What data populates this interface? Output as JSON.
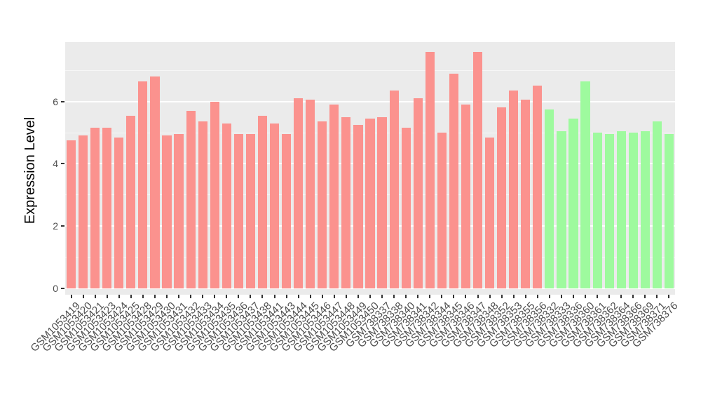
{
  "chart_data": {
    "type": "bar",
    "title": "",
    "xlabel": "",
    "ylabel": "Expression Level",
    "ylim": [
      0,
      7.9
    ],
    "yticks_major": [
      0,
      2,
      4,
      6
    ],
    "yticks_minor": [
      1,
      3,
      5,
      7
    ],
    "grid": "on",
    "legend": "none",
    "panel_background": "#EBEBEB",
    "categories": [
      "GSM1053419",
      "GSM1053420",
      "GSM1053421",
      "GSM1053423",
      "GSM1053424",
      "GSM1053425",
      "GSM1053428",
      "GSM1053429",
      "GSM1053430",
      "GSM1053431",
      "GSM1053432",
      "GSM1053433",
      "GSM1053434",
      "GSM1053435",
      "GSM1053436",
      "GSM1053437",
      "GSM1053438",
      "GSM1053441",
      "GSM1053443",
      "GSM1053444",
      "GSM1053445",
      "GSM1053446",
      "GSM1053447",
      "GSM1053448",
      "GSM1053449",
      "GSM1053450",
      "GSM738337",
      "GSM738338",
      "GSM738340",
      "GSM738341",
      "GSM738342",
      "GSM738344",
      "GSM738345",
      "GSM738346",
      "GSM738347",
      "GSM738348",
      "GSM738352",
      "GSM738353",
      "GSM738355",
      "GSM738356",
      "GSM738332",
      "GSM738333",
      "GSM738336",
      "GSM738360",
      "GSM738361",
      "GSM738362",
      "GSM738364",
      "GSM738366",
      "GSM738369",
      "GSM738371",
      "GSM738376"
    ],
    "values": [
      4.75,
      4.9,
      5.15,
      5.15,
      4.85,
      5.55,
      6.65,
      6.8,
      4.9,
      4.95,
      5.7,
      5.35,
      6.0,
      5.3,
      4.95,
      4.95,
      5.55,
      5.3,
      4.95,
      6.1,
      6.05,
      5.35,
      5.9,
      5.5,
      5.25,
      5.45,
      5.5,
      6.35,
      5.15,
      6.1,
      7.6,
      5.0,
      6.9,
      5.9,
      7.6,
      4.85,
      5.8,
      6.35,
      6.05,
      6.5,
      5.75,
      5.05,
      5.45,
      6.65,
      5.0,
      4.95,
      5.05,
      5.0,
      5.05,
      5.35,
      4.95
    ],
    "bar_groups": [
      "a",
      "a",
      "a",
      "a",
      "a",
      "a",
      "a",
      "a",
      "a",
      "a",
      "a",
      "a",
      "a",
      "a",
      "a",
      "a",
      "a",
      "a",
      "a",
      "a",
      "a",
      "a",
      "a",
      "a",
      "a",
      "a",
      "a",
      "a",
      "a",
      "a",
      "a",
      "a",
      "a",
      "a",
      "a",
      "a",
      "a",
      "a",
      "a",
      "a",
      "b",
      "b",
      "b",
      "b",
      "b",
      "b",
      "b",
      "b",
      "b",
      "b",
      "b"
    ],
    "group_colors": {
      "a": "#FB928E",
      "b": "#9EFA9E"
    }
  }
}
